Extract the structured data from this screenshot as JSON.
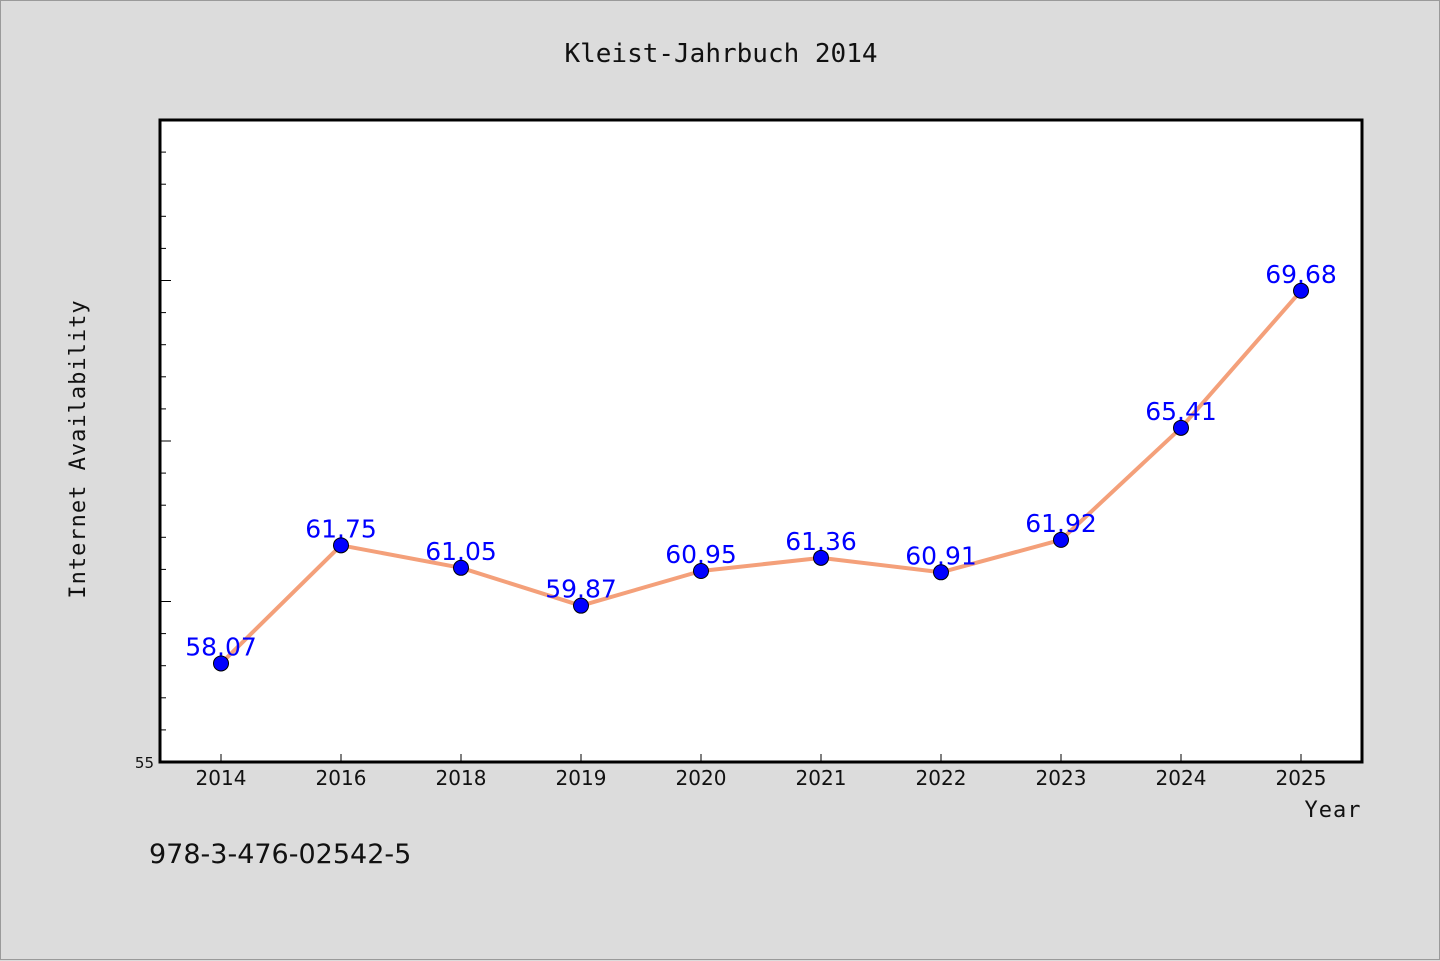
{
  "chart_data": {
    "type": "line",
    "title": "Kleist-Jahrbuch 2014",
    "xlabel": "Year",
    "ylabel": "Internet Availability",
    "categories": [
      "2014",
      "2016",
      "2018",
      "2019",
      "2020",
      "2021",
      "2022",
      "2023",
      "2024",
      "2025"
    ],
    "values": [
      58.07,
      61.75,
      61.05,
      59.87,
      60.95,
      61.36,
      60.91,
      61.92,
      65.41,
      69.68
    ],
    "data_labels": [
      "58.07",
      "61.75",
      "61.05",
      "59.87",
      "60.95",
      "61.36",
      "60.91",
      "61.92",
      "65.41",
      "69.68"
    ],
    "ylim": [
      55,
      75
    ],
    "y_tick_labels": [
      "55"
    ],
    "grid": false,
    "line_color": "#f4a07a",
    "marker_color": "#0000ff",
    "label_color": "#0000ff",
    "background_color": "#dcdcdc",
    "plot_background_color": "#ffffff"
  },
  "footer": {
    "isbn": "978-3-476-02542-5"
  }
}
